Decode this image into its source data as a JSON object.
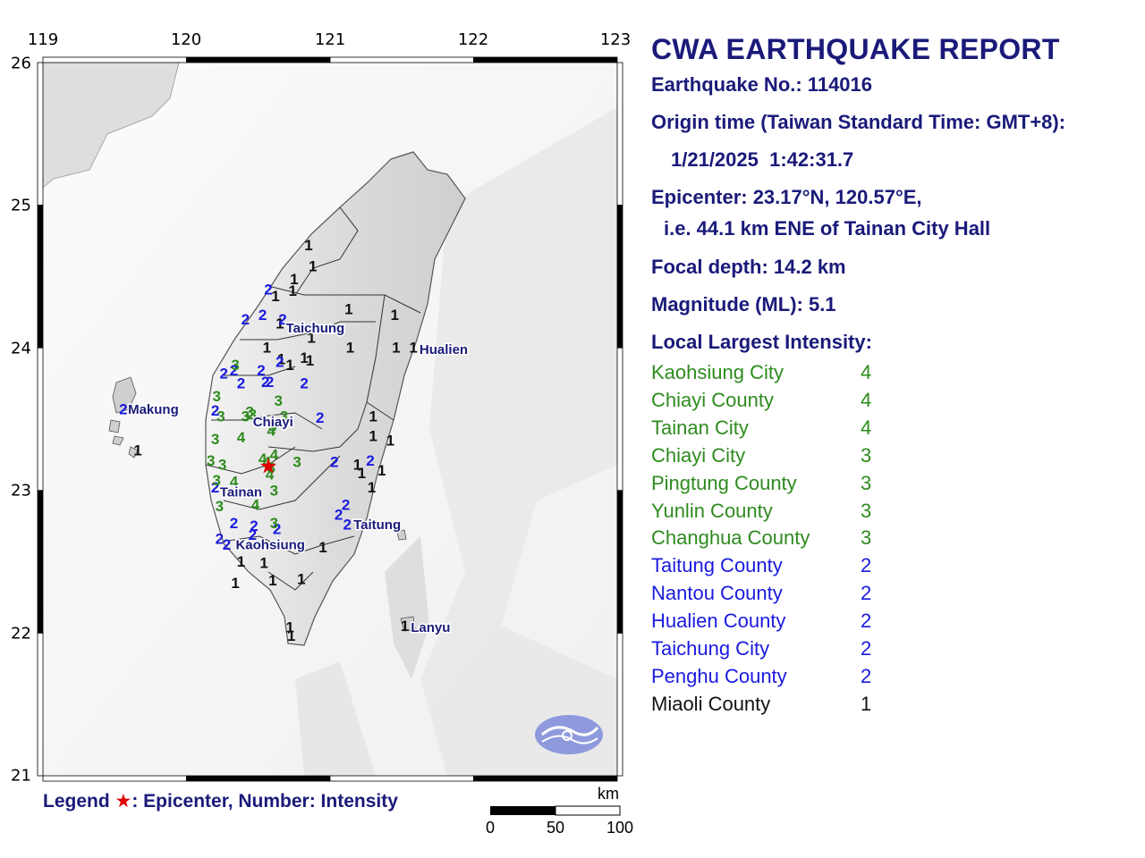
{
  "report": {
    "title": "CWA EARTHQUAKE REPORT",
    "earthquake_no": "Earthquake No.: 114016",
    "origin_label": "Origin time (Taiwan Standard Time: GMT+8):",
    "origin_time": "1/21/2025  1:42:31.7",
    "epicenter": "Epicenter: 23.17°N, 120.57°E,",
    "epicenter_ref": "i.e. 44.1 km ENE of Tainan City Hall",
    "focal_depth": "Focal depth: 14.2 km",
    "magnitude": "Magnitude (ML): 5.1",
    "intensity_heading": "Local Largest Intensity:",
    "intensities": [
      {
        "area": "Kaohsiung City",
        "value": "4"
      },
      {
        "area": "Chiayi County",
        "value": "4"
      },
      {
        "area": "Tainan City",
        "value": "4"
      },
      {
        "area": "Chiayi City",
        "value": "3"
      },
      {
        "area": "Pingtung County",
        "value": "3"
      },
      {
        "area": "Yunlin County",
        "value": "3"
      },
      {
        "area": "Changhua County",
        "value": "3"
      },
      {
        "area": "Taitung County",
        "value": "2"
      },
      {
        "area": "Nantou County",
        "value": "2"
      },
      {
        "area": "Hualien County",
        "value": "2"
      },
      {
        "area": "Taichung City",
        "value": "2"
      },
      {
        "area": "Penghu County",
        "value": "2"
      },
      {
        "area": "Miaoli County",
        "value": "1"
      }
    ]
  },
  "map": {
    "lon_ticks": [
      "119",
      "120",
      "121",
      "122",
      "123"
    ],
    "lat_ticks": [
      "26",
      "25",
      "24",
      "23",
      "22",
      "21"
    ],
    "cities": [
      {
        "name": "Taichung",
        "lon": 120.68,
        "lat": 24.14
      },
      {
        "name": "Hualien",
        "lon": 121.61,
        "lat": 23.99
      },
      {
        "name": "Makung",
        "lon": 119.58,
        "lat": 23.57
      },
      {
        "name": "Chiayi",
        "lon": 120.45,
        "lat": 23.48
      },
      {
        "name": "Tainan",
        "lon": 120.22,
        "lat": 22.99
      },
      {
        "name": "Taitung",
        "lon": 121.15,
        "lat": 22.76
      },
      {
        "name": "Kaohsiung",
        "lon": 120.33,
        "lat": 22.62
      },
      {
        "name": "Lanyu",
        "lon": 121.55,
        "lat": 22.04
      }
    ],
    "epicenter": {
      "lon": 120.57,
      "lat": 23.17
    },
    "stations": [
      {
        "lon": 120.85,
        "lat": 24.72,
        "value": "1"
      },
      {
        "lon": 120.75,
        "lat": 24.48,
        "value": "1"
      },
      {
        "lon": 120.74,
        "lat": 24.4,
        "value": "1"
      },
      {
        "lon": 120.62,
        "lat": 24.36,
        "value": "1"
      },
      {
        "lon": 120.88,
        "lat": 24.57,
        "value": "1"
      },
      {
        "lon": 121.13,
        "lat": 24.27,
        "value": "1"
      },
      {
        "lon": 121.45,
        "lat": 24.23,
        "value": "1"
      },
      {
        "lon": 120.65,
        "lat": 24.17,
        "value": "1"
      },
      {
        "lon": 120.87,
        "lat": 24.07,
        "value": "1"
      },
      {
        "lon": 121.14,
        "lat": 24.0,
        "value": "1"
      },
      {
        "lon": 121.46,
        "lat": 24.0,
        "value": "1"
      },
      {
        "lon": 121.58,
        "lat": 24.0,
        "value": "1"
      },
      {
        "lon": 120.86,
        "lat": 23.91,
        "value": "1"
      },
      {
        "lon": 120.82,
        "lat": 23.93,
        "value": "1"
      },
      {
        "lon": 120.66,
        "lat": 23.92,
        "value": "1"
      },
      {
        "lon": 120.72,
        "lat": 23.88,
        "value": "1"
      },
      {
        "lon": 120.56,
        "lat": 24.0,
        "value": "1"
      },
      {
        "lon": 121.3,
        "lat": 23.52,
        "value": "1"
      },
      {
        "lon": 121.3,
        "lat": 23.38,
        "value": "1"
      },
      {
        "lon": 121.42,
        "lat": 23.35,
        "value": "1"
      },
      {
        "lon": 121.19,
        "lat": 23.18,
        "value": "1"
      },
      {
        "lon": 121.22,
        "lat": 23.12,
        "value": "1"
      },
      {
        "lon": 121.36,
        "lat": 23.14,
        "value": "1"
      },
      {
        "lon": 121.29,
        "lat": 23.02,
        "value": "1"
      },
      {
        "lon": 120.95,
        "lat": 22.6,
        "value": "1"
      },
      {
        "lon": 120.38,
        "lat": 22.5,
        "value": "1"
      },
      {
        "lon": 120.54,
        "lat": 22.49,
        "value": "1"
      },
      {
        "lon": 120.8,
        "lat": 22.38,
        "value": "1"
      },
      {
        "lon": 120.6,
        "lat": 22.37,
        "value": "1"
      },
      {
        "lon": 120.34,
        "lat": 22.35,
        "value": "1"
      },
      {
        "lon": 120.72,
        "lat": 22.04,
        "value": "1"
      },
      {
        "lon": 120.73,
        "lat": 21.98,
        "value": "1"
      },
      {
        "lon": 121.52,
        "lat": 22.05,
        "value": "1"
      },
      {
        "lon": 119.66,
        "lat": 23.28,
        "value": "1"
      },
      {
        "lon": 120.57,
        "lat": 24.41,
        "value": "2"
      },
      {
        "lon": 120.53,
        "lat": 24.23,
        "value": "2"
      },
      {
        "lon": 120.41,
        "lat": 24.2,
        "value": "2"
      },
      {
        "lon": 120.67,
        "lat": 24.2,
        "value": "2"
      },
      {
        "lon": 120.65,
        "lat": 23.9,
        "value": "2"
      },
      {
        "lon": 120.33,
        "lat": 23.84,
        "value": "2"
      },
      {
        "lon": 120.52,
        "lat": 23.84,
        "value": "2"
      },
      {
        "lon": 120.26,
        "lat": 23.82,
        "value": "2"
      },
      {
        "lon": 120.55,
        "lat": 23.76,
        "value": "2"
      },
      {
        "lon": 120.58,
        "lat": 23.76,
        "value": "2"
      },
      {
        "lon": 120.38,
        "lat": 23.75,
        "value": "2"
      },
      {
        "lon": 120.82,
        "lat": 23.75,
        "value": "2"
      },
      {
        "lon": 120.2,
        "lat": 23.56,
        "value": "2"
      },
      {
        "lon": 120.93,
        "lat": 23.51,
        "value": "2"
      },
      {
        "lon": 119.56,
        "lat": 23.57,
        "value": "2"
      },
      {
        "lon": 121.03,
        "lat": 23.2,
        "value": "2"
      },
      {
        "lon": 121.28,
        "lat": 23.21,
        "value": "2"
      },
      {
        "lon": 120.2,
        "lat": 23.02,
        "value": "2"
      },
      {
        "lon": 121.11,
        "lat": 22.9,
        "value": "2"
      },
      {
        "lon": 121.06,
        "lat": 22.83,
        "value": "2"
      },
      {
        "lon": 121.12,
        "lat": 22.76,
        "value": "2"
      },
      {
        "lon": 120.33,
        "lat": 22.77,
        "value": "2"
      },
      {
        "lon": 120.47,
        "lat": 22.75,
        "value": "2"
      },
      {
        "lon": 120.63,
        "lat": 22.73,
        "value": "2"
      },
      {
        "lon": 120.23,
        "lat": 22.66,
        "value": "2"
      },
      {
        "lon": 120.46,
        "lat": 22.69,
        "value": "2"
      },
      {
        "lon": 120.28,
        "lat": 22.62,
        "value": "2"
      },
      {
        "lon": 120.34,
        "lat": 23.88,
        "value": "3"
      },
      {
        "lon": 120.21,
        "lat": 23.66,
        "value": "3"
      },
      {
        "lon": 120.64,
        "lat": 23.63,
        "value": "3"
      },
      {
        "lon": 120.24,
        "lat": 23.52,
        "value": "3"
      },
      {
        "lon": 120.44,
        "lat": 23.55,
        "value": "3"
      },
      {
        "lon": 120.41,
        "lat": 23.52,
        "value": "3"
      },
      {
        "lon": 120.46,
        "lat": 23.53,
        "value": "3"
      },
      {
        "lon": 120.6,
        "lat": 23.45,
        "value": "3"
      },
      {
        "lon": 120.68,
        "lat": 23.52,
        "value": "3"
      },
      {
        "lon": 120.2,
        "lat": 23.36,
        "value": "3"
      },
      {
        "lon": 120.17,
        "lat": 23.21,
        "value": "3"
      },
      {
        "lon": 120.25,
        "lat": 23.18,
        "value": "3"
      },
      {
        "lon": 120.77,
        "lat": 23.2,
        "value": "3"
      },
      {
        "lon": 120.61,
        "lat": 23.0,
        "value": "3"
      },
      {
        "lon": 120.21,
        "lat": 23.07,
        "value": "3"
      },
      {
        "lon": 120.23,
        "lat": 22.89,
        "value": "3"
      },
      {
        "lon": 120.61,
        "lat": 22.77,
        "value": "3"
      },
      {
        "lon": 120.59,
        "lat": 23.16,
        "value": "3"
      },
      {
        "lon": 120.59,
        "lat": 23.42,
        "value": "4"
      },
      {
        "lon": 120.38,
        "lat": 23.37,
        "value": "4"
      },
      {
        "lon": 120.61,
        "lat": 23.25,
        "value": "4"
      },
      {
        "lon": 120.53,
        "lat": 23.22,
        "value": "4"
      },
      {
        "lon": 120.56,
        "lat": 23.2,
        "value": "4"
      },
      {
        "lon": 120.58,
        "lat": 23.11,
        "value": "4"
      },
      {
        "lon": 120.33,
        "lat": 23.06,
        "value": "4"
      },
      {
        "lon": 120.48,
        "lat": 22.9,
        "value": "4"
      }
    ]
  },
  "legend": {
    "prefix": "Legend",
    "star": "★",
    "text": ": Epicenter, Number: Intensity"
  },
  "scale": {
    "unit": "km",
    "ticks": [
      "0",
      "50",
      "100"
    ]
  },
  "colors": {
    "title": "#1a1a7a",
    "intensity_4": "#2e8b1e",
    "intensity_3": "#2e8b1e",
    "intensity_2": "#1a1ae0",
    "intensity_1": "#111111",
    "epicenter": "#e00000",
    "logo": "#6f7fd8"
  }
}
